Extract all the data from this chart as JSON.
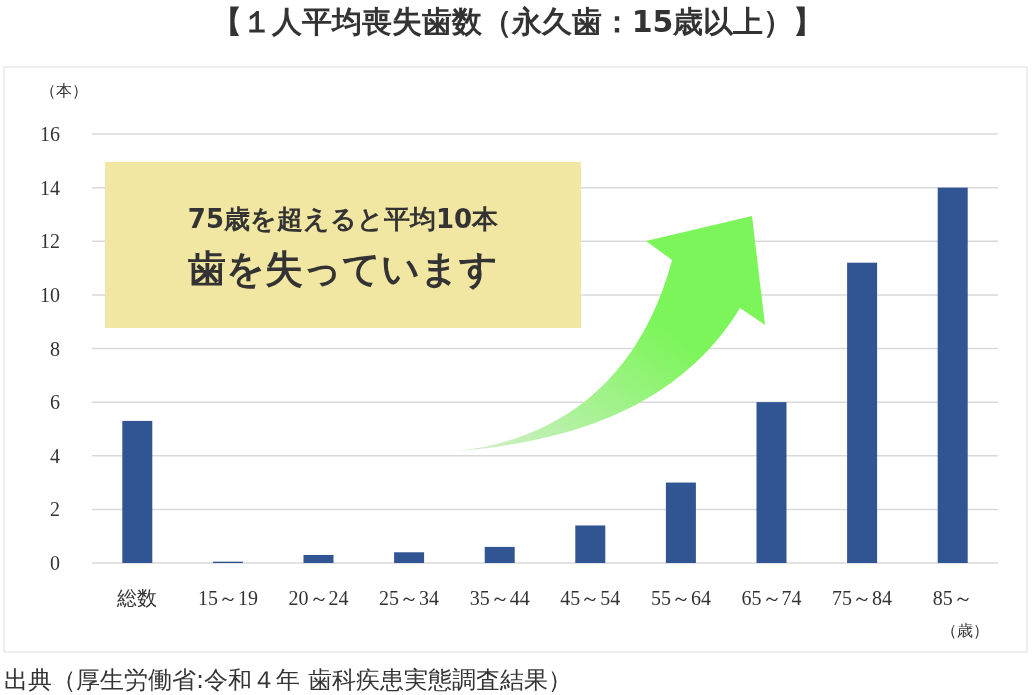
{
  "chart_data": {
    "type": "bar",
    "title": "【１人平均喪失歯数（永久歯：15歳以上）】",
    "ylabel": "（本）",
    "xlabel": "（歳）",
    "categories": [
      "総数",
      "15～19",
      "20～24",
      "25～34",
      "35～44",
      "45～54",
      "55～64",
      "65～74",
      "75～84",
      "85～"
    ],
    "values": [
      5.3,
      0.05,
      0.3,
      0.4,
      0.6,
      1.4,
      3.0,
      6.0,
      11.2,
      14.0
    ],
    "color": "#315593",
    "ylim": [
      0,
      16
    ],
    "yticks": [
      0,
      2,
      4,
      6,
      8,
      10,
      12,
      14,
      16
    ],
    "grid": "y",
    "annotations": [
      "75歳を超えると平均10本",
      "歯を失っています",
      "出典（厚生労働省:令和４年 歯科疾患実態調査結果）"
    ]
  }
}
